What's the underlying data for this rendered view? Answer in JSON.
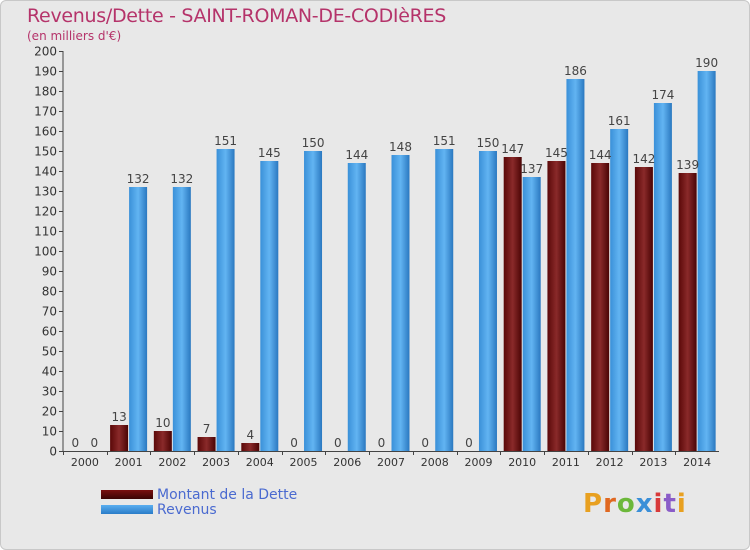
{
  "title": "Revenus/Dette - SAINT-ROMAN-DE-CODIèRES",
  "subtitle": "(en milliers d'€)",
  "logo_text": "Proxiti",
  "colors": {
    "dette": "#7a1212",
    "revenus": "#52a8ea",
    "title": "#b5336a"
  },
  "chart_data": {
    "type": "bar",
    "title": "Revenus/Dette - SAINT-ROMAN-DE-CODIèRES",
    "ylabel": "(en milliers d'€)",
    "ylim": [
      0,
      200
    ],
    "yticks": [
      0,
      10,
      20,
      30,
      40,
      50,
      60,
      70,
      80,
      90,
      100,
      110,
      120,
      130,
      140,
      150,
      160,
      170,
      180,
      190,
      200
    ],
    "grid": false,
    "legend_position": "bottom-left",
    "categories": [
      "2000",
      "2001",
      "2002",
      "2003",
      "2004",
      "2005",
      "2006",
      "2007",
      "2008",
      "2009",
      "2010",
      "2011",
      "2012",
      "2013",
      "2014"
    ],
    "series": [
      {
        "name": "Montant de la Dette",
        "values": [
          0,
          13,
          10,
          7,
          4,
          0,
          0,
          0,
          0,
          0,
          147,
          145,
          144,
          142,
          139
        ]
      },
      {
        "name": "Revenus",
        "values": [
          0,
          132,
          132,
          151,
          145,
          150,
          144,
          148,
          151,
          150,
          137,
          186,
          161,
          174,
          190
        ]
      }
    ]
  }
}
